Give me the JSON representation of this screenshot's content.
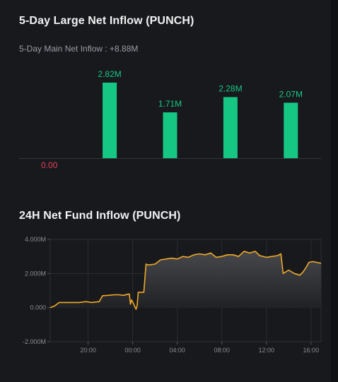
{
  "sections": {
    "large_inflow_title": "5-Day Large Net Inflow (PUNCH)",
    "main_inflow_summary": "5-Day Main Net Inflow : +8.88M",
    "fund_inflow_title": "24H Net Fund Inflow (PUNCH)"
  },
  "colors": {
    "positive": "#16c784",
    "negative": "#e0445a",
    "line": "#f0a92a"
  },
  "chart_data": [
    {
      "type": "bar",
      "title": "5-Day Large Net Inflow (PUNCH)",
      "categories": [
        "",
        "",
        "",
        "",
        ""
      ],
      "values": [
        0.0,
        2.82,
        1.71,
        2.28,
        2.07
      ],
      "labels": [
        "0.00",
        "2.82M",
        "1.71M",
        "2.28M",
        "2.07M"
      ],
      "ylim": [
        0,
        2.82
      ],
      "grid": false
    },
    {
      "type": "area",
      "title": "24H Net Fund Inflow (PUNCH)",
      "ylim": [
        -2000000,
        4000000
      ],
      "y_ticks": [
        {
          "value": 4000000,
          "label": "4.000M"
        },
        {
          "value": 2000000,
          "label": "2.000M"
        },
        {
          "value": 0,
          "label": "0.000"
        },
        {
          "value": -2000000,
          "label": "-2.000M"
        }
      ],
      "x_ticks": [
        {
          "h": 2,
          "label": "20:00"
        },
        {
          "h": 6,
          "label": "00:00"
        },
        {
          "h": 10,
          "label": "04:00"
        },
        {
          "h": 14,
          "label": "08:00"
        },
        {
          "h": 18,
          "label": "12:00"
        },
        {
          "h": 22,
          "label": "16:00"
        }
      ],
      "x_range": [
        -1.4,
        22.9
      ],
      "grid": true,
      "points": [
        [
          -1.4,
          0.0
        ],
        [
          -1.0,
          0.1
        ],
        [
          -0.6,
          0.3
        ],
        [
          0.0,
          0.3
        ],
        [
          0.6,
          0.3
        ],
        [
          1.2,
          0.3
        ],
        [
          1.8,
          0.35
        ],
        [
          2.3,
          0.3
        ],
        [
          3.0,
          0.35
        ],
        [
          3.3,
          0.7
        ],
        [
          3.8,
          0.72
        ],
        [
          4.3,
          0.75
        ],
        [
          4.8,
          0.75
        ],
        [
          5.2,
          0.72
        ],
        [
          5.5,
          0.78
        ],
        [
          5.7,
          0.8
        ],
        [
          5.8,
          0.2
        ],
        [
          5.9,
          0.45
        ],
        [
          6.1,
          0.2
        ],
        [
          6.3,
          -0.1
        ],
        [
          6.4,
          0.1
        ],
        [
          6.5,
          0.9
        ],
        [
          6.8,
          0.9
        ],
        [
          7.0,
          0.9
        ],
        [
          7.2,
          2.55
        ],
        [
          7.4,
          2.5
        ],
        [
          8.0,
          2.55
        ],
        [
          8.5,
          2.8
        ],
        [
          9.0,
          2.85
        ],
        [
          9.5,
          2.9
        ],
        [
          10.0,
          2.85
        ],
        [
          10.5,
          3.0
        ],
        [
          11.0,
          2.95
        ],
        [
          11.5,
          3.1
        ],
        [
          12.0,
          3.15
        ],
        [
          12.5,
          3.1
        ],
        [
          13.0,
          3.2
        ],
        [
          13.5,
          2.95
        ],
        [
          14.0,
          3.0
        ],
        [
          14.5,
          3.1
        ],
        [
          15.0,
          3.1
        ],
        [
          15.5,
          3.0
        ],
        [
          16.0,
          3.3
        ],
        [
          16.5,
          3.2
        ],
        [
          17.0,
          3.3
        ],
        [
          17.4,
          3.05
        ],
        [
          18.0,
          2.95
        ],
        [
          18.5,
          3.0
        ],
        [
          19.0,
          3.05
        ],
        [
          19.3,
          3.15
        ],
        [
          19.5,
          2.0
        ],
        [
          20.0,
          2.2
        ],
        [
          20.5,
          2.0
        ],
        [
          21.0,
          1.9
        ],
        [
          21.3,
          2.1
        ],
        [
          21.6,
          2.4
        ],
        [
          21.8,
          2.65
        ],
        [
          22.2,
          2.7
        ],
        [
          22.5,
          2.65
        ],
        [
          22.9,
          2.6
        ]
      ]
    }
  ]
}
